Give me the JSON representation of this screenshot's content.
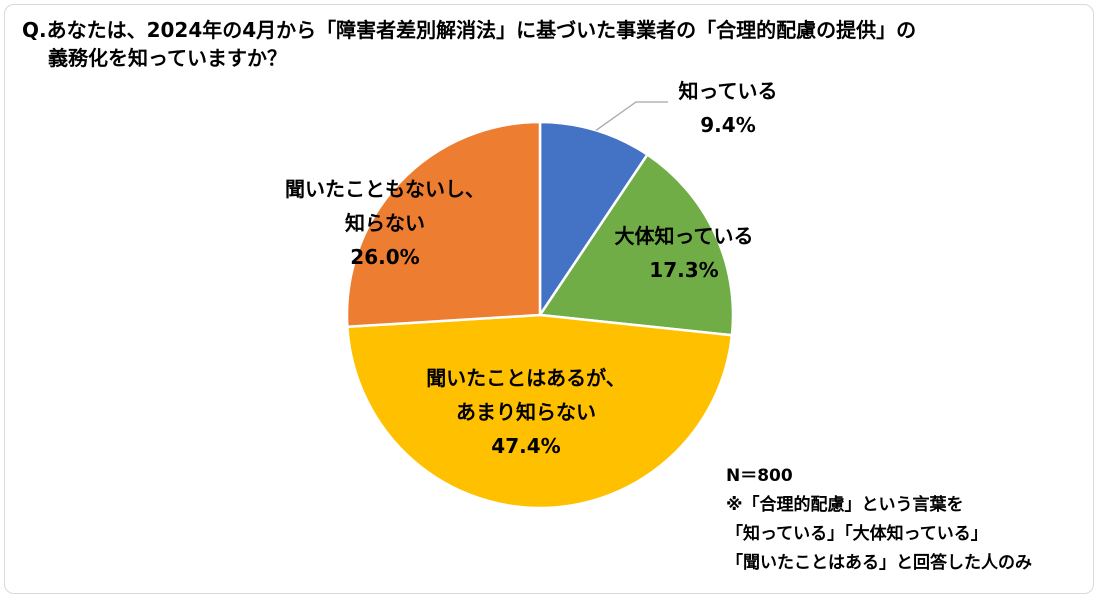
{
  "title_lines": [
    "Q.あなたは、2024年の4月から「障害者差別解消法」に基づいた事業者の「合理的配慮の提供」の",
    "義務化を知っていますか？"
  ],
  "note": {
    "n": "N＝800",
    "lines": [
      "※「合理的配慮」という言葉を",
      "「知っている」「大体知っている」",
      "「聞いたことはある」と回答した人のみ"
    ]
  },
  "chart_data": {
    "type": "pie",
    "title": "Q.あなたは、2024年の4月から「障害者差別解消法」に基づいた事業者の「合理的配慮の提供」の義務化を知っていますか？",
    "start_angle_deg": 0,
    "direction": "clockwise",
    "legend": "none",
    "slices": [
      {
        "label_lines": [
          "知っている"
        ],
        "value": 9.4,
        "value_label": "9.4%",
        "color": "#4472C4"
      },
      {
        "label_lines": [
          "大体知っている"
        ],
        "value": 17.3,
        "value_label": "17.3%",
        "color": "#70AD47"
      },
      {
        "label_lines": [
          "聞いたことはあるが、",
          "あまり知らない"
        ],
        "value": 47.4,
        "value_label": "47.4%",
        "color": "#FFC000"
      },
      {
        "label_lines": [
          "聞いたこともないし、",
          "知らない"
        ],
        "value": 26.0,
        "value_label": "26.0%",
        "color": "#ED7D31"
      }
    ]
  }
}
